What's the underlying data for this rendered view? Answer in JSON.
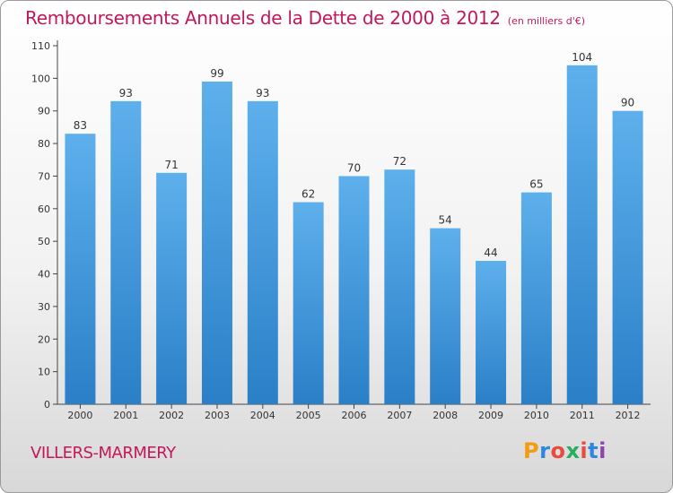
{
  "header": {
    "title": "Remboursements Annuels de la Dette de 2000 à 2012",
    "unit": "(en milliers d'€)"
  },
  "commune": "VILLERS-MARMERY",
  "brand": {
    "text": "Proxiti",
    "letter_colors": [
      "#f39c12",
      "#2e86de",
      "#e74c3c",
      "#27ae60",
      "#e74c3c",
      "#2e86de",
      "#8e44ad"
    ]
  },
  "colors": {
    "bar_top": "#5eb0ec",
    "bar_bottom": "#2a7fc7",
    "title": "#c2185b"
  },
  "chart_data": {
    "type": "bar",
    "categories": [
      "2000",
      "2001",
      "2002",
      "2003",
      "2004",
      "2005",
      "2006",
      "2007",
      "2008",
      "2009",
      "2010",
      "2011",
      "2012"
    ],
    "values": [
      83,
      93,
      71,
      99,
      93,
      62,
      70,
      72,
      54,
      44,
      65,
      104,
      90
    ],
    "title": "Remboursements Annuels de la Dette de 2000 à 2012",
    "ylim": [
      0,
      110
    ],
    "yticks": [
      0,
      10,
      20,
      30,
      40,
      50,
      60,
      70,
      80,
      90,
      100,
      110
    ],
    "grid": false,
    "legend": "none"
  }
}
